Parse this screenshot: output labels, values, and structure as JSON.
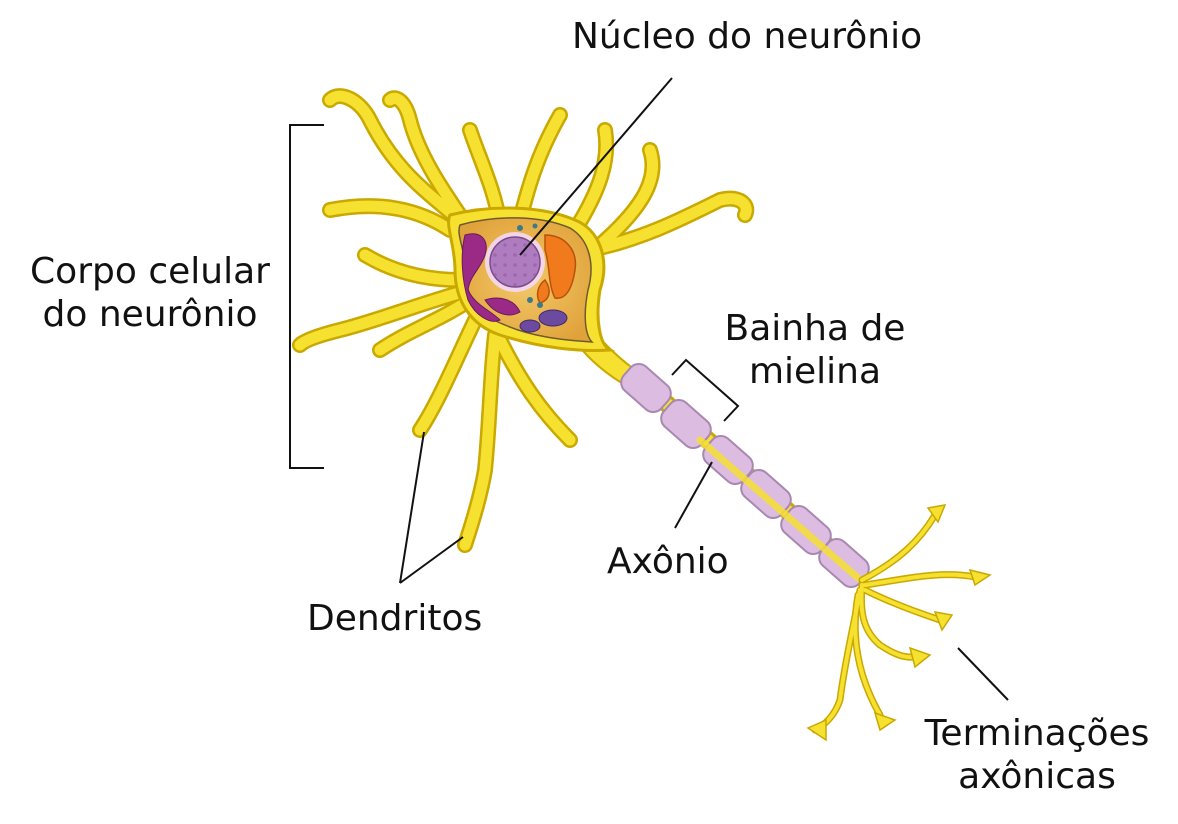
{
  "labels": {
    "nucleus": "Núcleo do neurônio",
    "cell_body_line1": "Corpo celular",
    "cell_body_line2": "do neurônio",
    "myelin_line1": "Bainha de",
    "myelin_line2": "mielina",
    "axon": "Axônio",
    "dendrites": "Dendritos",
    "terminals_line1": "Terminações",
    "terminals_line2": "axônicas"
  },
  "colors": {
    "dendrite": "#f7e130",
    "dendrite_edge": "#c9a800",
    "soma": "#e9b44a",
    "nucleus": "#b07cc0",
    "golgi": "#9a2a86",
    "mitochondria": "#f07a1c",
    "myelin": "#dcbce0",
    "myelin_edge": "#a888b0",
    "leader": "#111111"
  }
}
